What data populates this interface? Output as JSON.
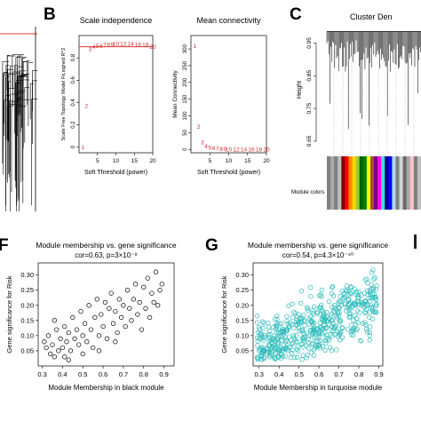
{
  "panels": {
    "B": "B",
    "C": "C",
    "F": "F",
    "G": "G"
  },
  "chart_data": [
    {
      "id": "scale_independence",
      "type": "scatter",
      "title": "Scale independence",
      "xlabel": "Soft Threshold (power)",
      "ylabel": "Scale Free Topology Model Fit,signed R^2",
      "xlim": [
        0,
        20
      ],
      "ylim": [
        -0.05,
        1.0
      ],
      "xticks": [
        5,
        10,
        15,
        20
      ],
      "yticks": [
        0.0,
        0.2,
        0.4,
        0.6,
        0.8
      ],
      "hline": 0.9,
      "hline_color": "#e53935",
      "label_color": "#d32f2f",
      "points": [
        {
          "x": 1,
          "y": 0.0,
          "label": "1"
        },
        {
          "x": 2,
          "y": 0.37,
          "label": "2"
        },
        {
          "x": 3,
          "y": 0.88,
          "label": "3"
        },
        {
          "x": 4,
          "y": 0.9,
          "label": "4"
        },
        {
          "x": 5,
          "y": 0.91,
          "label": "5"
        },
        {
          "x": 6,
          "y": 0.91,
          "label": "6"
        },
        {
          "x": 7,
          "y": 0.92,
          "label": "7"
        },
        {
          "x": 8,
          "y": 0.92,
          "label": "8"
        },
        {
          "x": 9,
          "y": 0.92,
          "label": "9"
        },
        {
          "x": 10,
          "y": 0.93,
          "label": "10"
        },
        {
          "x": 12,
          "y": 0.93,
          "label": "12"
        },
        {
          "x": 14,
          "y": 0.93,
          "label": "14"
        },
        {
          "x": 16,
          "y": 0.92,
          "label": "16"
        },
        {
          "x": 18,
          "y": 0.92,
          "label": "18"
        },
        {
          "x": 20,
          "y": 0.9,
          "label": "20"
        }
      ]
    },
    {
      "id": "mean_connectivity",
      "type": "scatter",
      "title": "Mean connectivity",
      "xlabel": "Soft Threshold (power)",
      "ylabel": "Mean Connectivity",
      "xlim": [
        0,
        20
      ],
      "ylim": [
        -10,
        340
      ],
      "xticks": [
        5,
        10,
        15,
        20
      ],
      "yticks": [
        0,
        50,
        100,
        150,
        200,
        250,
        300
      ],
      "label_color": "#d32f2f",
      "points": [
        {
          "x": 1,
          "y": 310,
          "label": "1"
        },
        {
          "x": 2,
          "y": 68,
          "label": "2"
        },
        {
          "x": 3,
          "y": 22,
          "label": "3"
        },
        {
          "x": 4,
          "y": 10,
          "label": "4"
        },
        {
          "x": 5,
          "y": 6,
          "label": "5"
        },
        {
          "x": 6,
          "y": 4,
          "label": "6"
        },
        {
          "x": 7,
          "y": 3,
          "label": "7"
        },
        {
          "x": 8,
          "y": 2,
          "label": "8"
        },
        {
          "x": 9,
          "y": 2,
          "label": "9"
        },
        {
          "x": 10,
          "y": 1,
          "label": "10"
        },
        {
          "x": 12,
          "y": 1,
          "label": "12"
        },
        {
          "x": 14,
          "y": 1,
          "label": "14"
        },
        {
          "x": 16,
          "y": 1,
          "label": "16"
        },
        {
          "x": 18,
          "y": 1,
          "label": "18"
        },
        {
          "x": 20,
          "y": 1,
          "label": "20"
        }
      ]
    },
    {
      "id": "cluster_dendrogram",
      "type": "other",
      "title": "Cluster Den",
      "ylabel": "Height",
      "ylim": [
        0.62,
        1.0
      ],
      "yticks": [
        0.65,
        0.75,
        0.85,
        0.95
      ],
      "row_label": "Module colors",
      "module_colors": [
        "#808080",
        "#a9a9a9",
        "#808080",
        "#c0c0c0",
        "#8b0000",
        "#ff0000",
        "#ff8c00",
        "#ffd700",
        "#9acd32",
        "#006400",
        "#008000",
        "#ffff00",
        "#a0522d",
        "#800080",
        "#ff00ff",
        "#40e0d0",
        "#00008b",
        "#0000ff",
        "#add8e6",
        "#808080",
        "#d3d3d3",
        "#696969",
        "#a9a9a9",
        "#ffc0cb",
        "#808080",
        "#c0c0c0"
      ]
    },
    {
      "id": "black_module",
      "type": "scatter",
      "title": "Module membership vs. gene significance",
      "subtitle": "cor=0.63, p=3×10⁻⁹",
      "xlabel": "Module Membership in black module",
      "ylabel": "Gene significance for Risk",
      "xlim": [
        0.28,
        0.95
      ],
      "ylim": [
        0.0,
        0.34
      ],
      "xticks": [
        0.3,
        0.4,
        0.5,
        0.6,
        0.7,
        0.8,
        0.9
      ],
      "yticks": [
        0.05,
        0.1,
        0.15,
        0.2,
        0.25,
        0.3
      ],
      "point_color": "#000000",
      "points": [
        [
          0.31,
          0.08
        ],
        [
          0.32,
          0.06
        ],
        [
          0.33,
          0.1
        ],
        [
          0.34,
          0.04
        ],
        [
          0.35,
          0.07
        ],
        [
          0.36,
          0.03
        ],
        [
          0.37,
          0.12
        ],
        [
          0.38,
          0.05
        ],
        [
          0.39,
          0.09
        ],
        [
          0.4,
          0.06
        ],
        [
          0.41,
          0.13
        ],
        [
          0.41,
          0.03
        ],
        [
          0.42,
          0.08
        ],
        [
          0.43,
          0.11
        ],
        [
          0.44,
          0.05
        ],
        [
          0.45,
          0.16
        ],
        [
          0.46,
          0.09
        ],
        [
          0.47,
          0.12
        ],
        [
          0.48,
          0.07
        ],
        [
          0.49,
          0.18
        ],
        [
          0.5,
          0.1
        ],
        [
          0.51,
          0.14
        ],
        [
          0.52,
          0.08
        ],
        [
          0.53,
          0.2
        ],
        [
          0.54,
          0.12
        ],
        [
          0.55,
          0.06
        ],
        [
          0.56,
          0.16
        ],
        [
          0.57,
          0.22
        ],
        [
          0.58,
          0.1
        ],
        [
          0.59,
          0.17
        ],
        [
          0.6,
          0.13
        ],
        [
          0.61,
          0.21
        ],
        [
          0.62,
          0.09
        ],
        [
          0.63,
          0.19
        ],
        [
          0.64,
          0.24
        ],
        [
          0.65,
          0.14
        ],
        [
          0.66,
          0.18
        ],
        [
          0.67,
          0.11
        ],
        [
          0.68,
          0.22
        ],
        [
          0.69,
          0.16
        ],
        [
          0.7,
          0.2
        ],
        [
          0.71,
          0.13
        ],
        [
          0.72,
          0.25
        ],
        [
          0.73,
          0.19
        ],
        [
          0.74,
          0.15
        ],
        [
          0.75,
          0.22
        ],
        [
          0.76,
          0.27
        ],
        [
          0.77,
          0.17
        ],
        [
          0.78,
          0.21
        ],
        [
          0.79,
          0.12
        ],
        [
          0.8,
          0.26
        ],
        [
          0.81,
          0.19
        ],
        [
          0.82,
          0.29
        ],
        [
          0.83,
          0.16
        ],
        [
          0.84,
          0.24
        ],
        [
          0.85,
          0.21
        ],
        [
          0.86,
          0.31
        ],
        [
          0.87,
          0.2
        ],
        [
          0.88,
          0.25
        ],
        [
          0.89,
          0.27
        ],
        [
          0.36,
          0.15
        ],
        [
          0.43,
          0.02
        ],
        [
          0.5,
          0.04
        ],
        [
          0.58,
          0.05
        ],
        [
          0.66,
          0.08
        ]
      ]
    },
    {
      "id": "turquoise_module",
      "type": "scatter",
      "title": "Module membership vs. gene significance",
      "subtitle": "cor=0.54, p=4.3×10⁻⁴⁰",
      "xlabel": "Module Membership in turquoise module",
      "ylabel": "Gene significance for Risk",
      "xlim": [
        0.27,
        0.92
      ],
      "ylim": [
        0.0,
        0.34
      ],
      "xticks": [
        0.3,
        0.4,
        0.5,
        0.6,
        0.7,
        0.8,
        0.9
      ],
      "yticks": [
        0.05,
        0.1,
        0.15,
        0.2,
        0.25,
        0.3
      ],
      "point_color": "#2bbbbb",
      "n_points": 520,
      "trend": {
        "slope": 0.26,
        "intercept": -0.02,
        "noise": 0.06
      }
    }
  ]
}
